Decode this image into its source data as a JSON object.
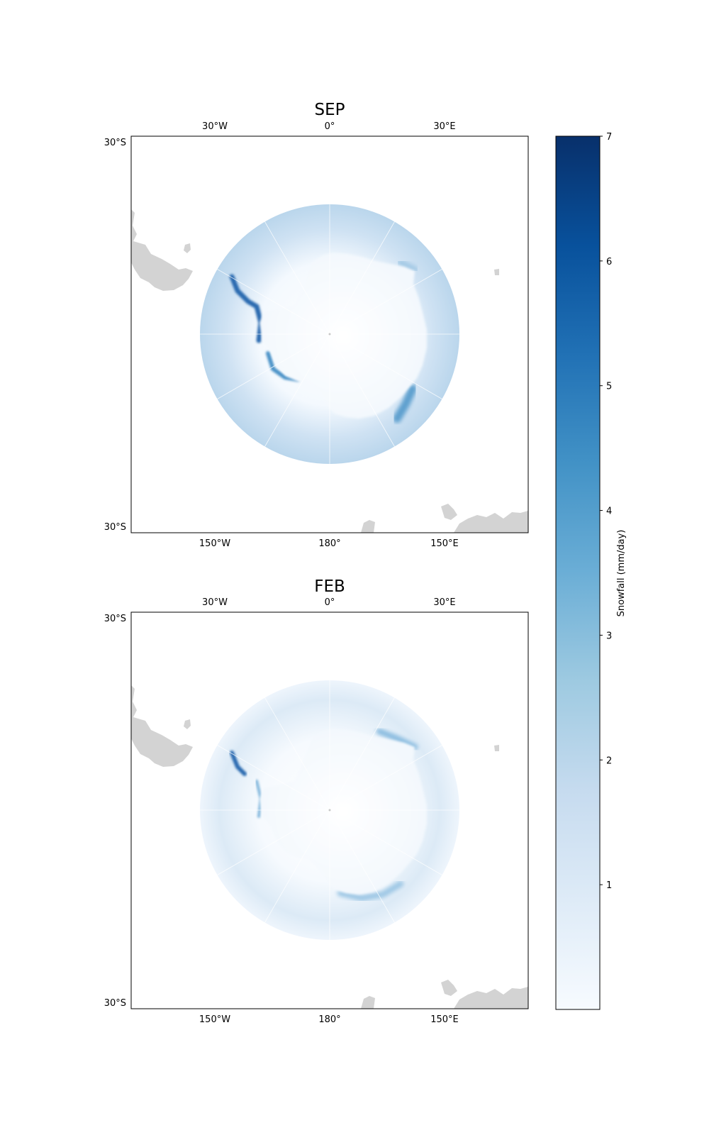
{
  "figure": {
    "panels": [
      {
        "title": "SEP",
        "top_ticks": [
          "30°W",
          "0°",
          "30°E"
        ],
        "bottom_ticks": [
          "150°W",
          "180°",
          "150°E"
        ],
        "left_ticks": [
          "30°S",
          "30°S"
        ]
      },
      {
        "title": "FEB",
        "top_ticks": [
          "30°W",
          "0°",
          "30°E"
        ],
        "bottom_ticks": [
          "150°W",
          "180°",
          "150°E"
        ],
        "left_ticks": [
          "30°S",
          "30°S"
        ]
      }
    ],
    "colorbar": {
      "label": "Snowfall (mm/day)",
      "ticks": [
        "1",
        "2",
        "3",
        "4",
        "5",
        "6",
        "7"
      ],
      "tick_values": [
        1,
        2,
        3,
        4,
        5,
        6,
        7
      ],
      "range": [
        0,
        7
      ],
      "colormap": "Blues",
      "colors": [
        "#f7fbff",
        "#deebf7",
        "#c6dbef",
        "#9ecae1",
        "#6baed6",
        "#4292c6",
        "#2171b5",
        "#08519c",
        "#08306b"
      ]
    },
    "colors": {
      "land": "#d3d3d3",
      "ice_interior": "#f7fbff",
      "gridline": "#ffffff"
    }
  }
}
